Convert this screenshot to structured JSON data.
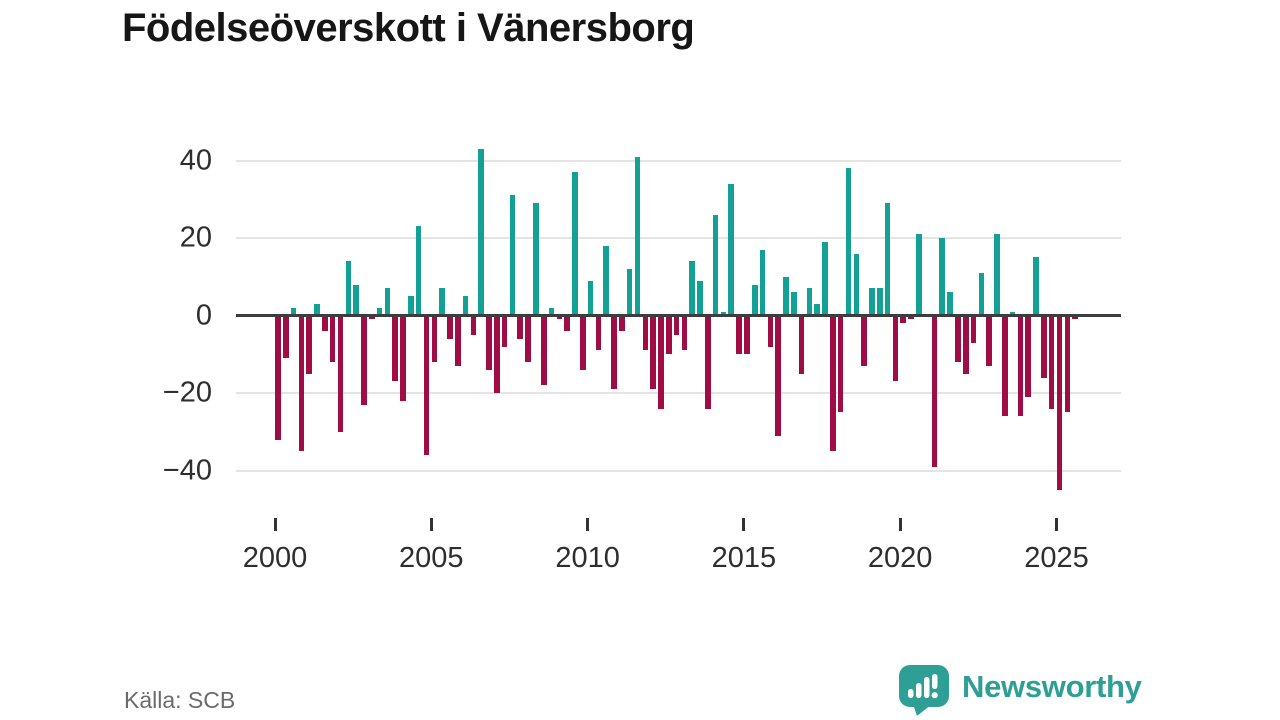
{
  "title": "Födelseöverskott i Vänersborg",
  "source": {
    "label": "Källa: SCB"
  },
  "branding": {
    "name": "Newsworthy",
    "icon": "newsworthy-bubble-chart-icon",
    "color": "#2d9f94"
  },
  "chart_data": {
    "type": "bar",
    "title": "Födelseöverskott i Vänersborg",
    "frequency": "quarterly",
    "start_period": "2000-Q1",
    "end_period": "2025-Q3",
    "xlabel": "",
    "ylabel": "",
    "y_ticks": [
      40,
      20,
      0,
      -20,
      -40
    ],
    "ylim": [
      -48,
      46
    ],
    "x_tick_years": [
      2000,
      2005,
      2010,
      2015,
      2020,
      2025
    ],
    "grid": "horizontal-light-with-dark-zero-line",
    "legend": "none",
    "colors": {
      "positive": "#14a195",
      "negative": "#a00d44"
    },
    "values": [
      -32,
      -11,
      2,
      -35,
      -15,
      3,
      -4,
      -12,
      -30,
      14,
      8,
      -23,
      -1,
      2,
      7,
      -17,
      -22,
      5,
      23,
      -36,
      -12,
      7,
      -6,
      -13,
      5,
      -5,
      43,
      -14,
      -20,
      -8,
      31,
      -6,
      -12,
      29,
      -18,
      2,
      -1,
      -4,
      37,
      -14,
      9,
      -9,
      18,
      -19,
      -4,
      12,
      41,
      -9,
      -19,
      -24,
      -10,
      -5,
      -9,
      14,
      9,
      -24,
      26,
      1,
      34,
      -10,
      -10,
      8,
      17,
      -8,
      -31,
      10,
      6,
      -15,
      7,
      3,
      19,
      -35,
      -25,
      38,
      16,
      -13,
      7,
      7,
      29,
      -17,
      -2,
      -1,
      21,
      0,
      -39,
      20,
      6,
      -12,
      -15,
      -7,
      11,
      -13,
      21,
      -26,
      1,
      -26,
      -21,
      15,
      -16,
      -24,
      -45,
      -25,
      -1
    ]
  }
}
